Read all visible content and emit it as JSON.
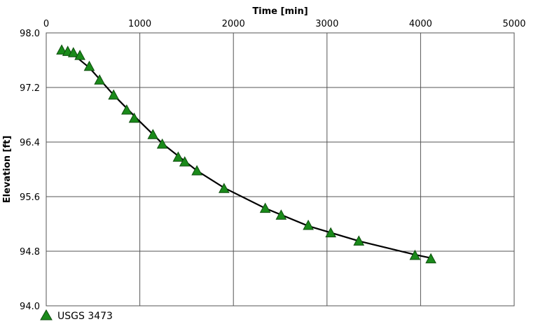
{
  "chart_data": {
    "type": "scatter",
    "xlabel": "Time [min]",
    "ylabel": "Elevation [ft]",
    "xlim": [
      0,
      5000
    ],
    "ylim": [
      94.0,
      98.0
    ],
    "x_ticks": [
      "0",
      "1000",
      "2000",
      "3000",
      "4000",
      "5000"
    ],
    "y_ticks": [
      "94.0",
      "94.8",
      "95.6",
      "96.4",
      "97.2",
      "98.0"
    ],
    "x_axis_position": "top",
    "grid": true,
    "legend_position": "bottom-left",
    "series": [
      {
        "name": "USGS 3473",
        "marker": "triangle",
        "color": "#1a8a1a",
        "x": [
          165,
          230,
          290,
          360,
          460,
          570,
          720,
          860,
          940,
          1140,
          1240,
          1410,
          1480,
          1610,
          1900,
          2340,
          2510,
          2800,
          3040,
          3340,
          3940,
          4110
        ],
        "y": [
          97.75,
          97.73,
          97.71,
          97.67,
          97.51,
          97.31,
          97.09,
          96.87,
          96.75,
          96.51,
          96.37,
          96.18,
          96.11,
          95.98,
          95.72,
          95.43,
          95.33,
          95.18,
          95.07,
          94.95,
          94.74,
          94.69
        ]
      },
      {
        "name": "",
        "type": "line",
        "color": "#000000",
        "x": [
          165,
          300,
          460,
          720,
          1000,
          1240,
          1610,
          1900,
          2340,
          2800,
          3340,
          3940,
          4110
        ],
        "y": [
          97.73,
          97.67,
          97.49,
          97.09,
          96.7,
          96.38,
          95.98,
          95.73,
          95.43,
          95.17,
          94.95,
          94.75,
          94.7
        ]
      }
    ]
  }
}
